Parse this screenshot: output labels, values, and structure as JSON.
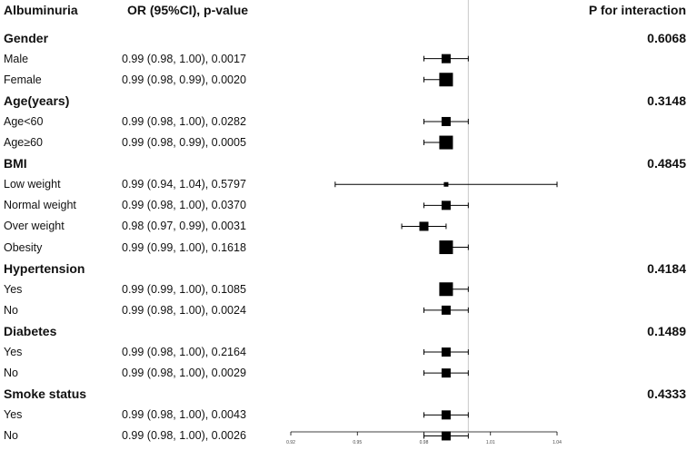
{
  "header": {
    "col_subgroup": "Albuminuria",
    "col_estimate": "OR (95%CI), p-value",
    "col_interaction": "P for interaction"
  },
  "rows": [
    {
      "kind": "group",
      "label": "Gender",
      "p_interaction": "0.6068"
    },
    {
      "kind": "sub",
      "label": "Male",
      "text": "0.99 (0.98, 1.00), 0.0017",
      "or": 0.99,
      "lo": 0.98,
      "hi": 1.0,
      "size": "s"
    },
    {
      "kind": "sub",
      "label": "Female",
      "text": "0.99 (0.98, 0.99), 0.0020",
      "or": 0.99,
      "lo": 0.98,
      "hi": 0.99,
      "size": "l"
    },
    {
      "kind": "group",
      "label": "Age(years)",
      "p_interaction": "0.3148"
    },
    {
      "kind": "sub",
      "label": "Age<60",
      "text": "0.99 (0.98, 1.00), 0.0282",
      "or": 0.99,
      "lo": 0.98,
      "hi": 1.0,
      "size": "s"
    },
    {
      "kind": "sub",
      "label": "Age≥60",
      "text": "0.99 (0.98, 0.99), 0.0005",
      "or": 0.99,
      "lo": 0.98,
      "hi": 0.99,
      "size": "l"
    },
    {
      "kind": "group",
      "label": "BMI",
      "p_interaction": "0.4845"
    },
    {
      "kind": "sub",
      "label": "Low weight",
      "text": "0.99 (0.94, 1.04), 0.5797",
      "or": 0.99,
      "lo": 0.94,
      "hi": 1.04,
      "size": "xs"
    },
    {
      "kind": "sub",
      "label": "Normal weight",
      "text": "0.99 (0.98, 1.00), 0.0370",
      "or": 0.99,
      "lo": 0.98,
      "hi": 1.0,
      "size": "s"
    },
    {
      "kind": "sub",
      "label": "Over weight",
      "text": "0.98 (0.97, 0.99), 0.0031",
      "or": 0.98,
      "lo": 0.97,
      "hi": 0.99,
      "size": "s"
    },
    {
      "kind": "sub",
      "label": "Obesity",
      "text": "0.99 (0.99, 1.00), 0.1618",
      "or": 0.99,
      "lo": 0.99,
      "hi": 1.0,
      "size": "l"
    },
    {
      "kind": "group",
      "label": "Hypertension",
      "p_interaction": "0.4184"
    },
    {
      "kind": "sub",
      "label": "Yes",
      "text": "0.99 (0.99, 1.00), 0.1085",
      "or": 0.99,
      "lo": 0.99,
      "hi": 1.0,
      "size": "l"
    },
    {
      "kind": "sub",
      "label": "No",
      "text": "0.99 (0.98, 1.00), 0.0024",
      "or": 0.99,
      "lo": 0.98,
      "hi": 1.0,
      "size": "s"
    },
    {
      "kind": "group",
      "label": "Diabetes",
      "p_interaction": "0.1489"
    },
    {
      "kind": "sub",
      "label": "Yes",
      "text": "0.99 (0.98, 1.00), 0.2164",
      "or": 0.99,
      "lo": 0.98,
      "hi": 1.0,
      "size": "s"
    },
    {
      "kind": "sub",
      "label": "No",
      "text": "0.99 (0.98, 1.00), 0.0029",
      "or": 0.99,
      "lo": 0.98,
      "hi": 1.0,
      "size": "s"
    },
    {
      "kind": "group",
      "label": "Smoke status",
      "p_interaction": "0.4333"
    },
    {
      "kind": "sub",
      "label": "Yes",
      "text": "0.99 (0.98, 1.00), 0.0043",
      "or": 0.99,
      "lo": 0.98,
      "hi": 1.0,
      "size": "s"
    },
    {
      "kind": "sub",
      "label": "No",
      "text": "0.99 (0.98, 1.00), 0.0026",
      "or": 0.99,
      "lo": 0.98,
      "hi": 1.0,
      "size": "s"
    }
  ],
  "chart_data": {
    "type": "scatter",
    "subtype": "forest-plot",
    "xlabel": "",
    "ylabel": "",
    "xlim": [
      0.92,
      1.04
    ],
    "x_ticks": [
      "0.92",
      "0.95",
      "0.98",
      "1.01",
      "1.04"
    ],
    "x_tick_values": [
      0.92,
      0.95,
      0.98,
      1.01,
      1.04
    ],
    "reference_line": 1.0,
    "reference_line_color": "#c8c8c8",
    "marker_shape": "square",
    "marker_color": "#000000",
    "grid": false,
    "legend": "none"
  }
}
